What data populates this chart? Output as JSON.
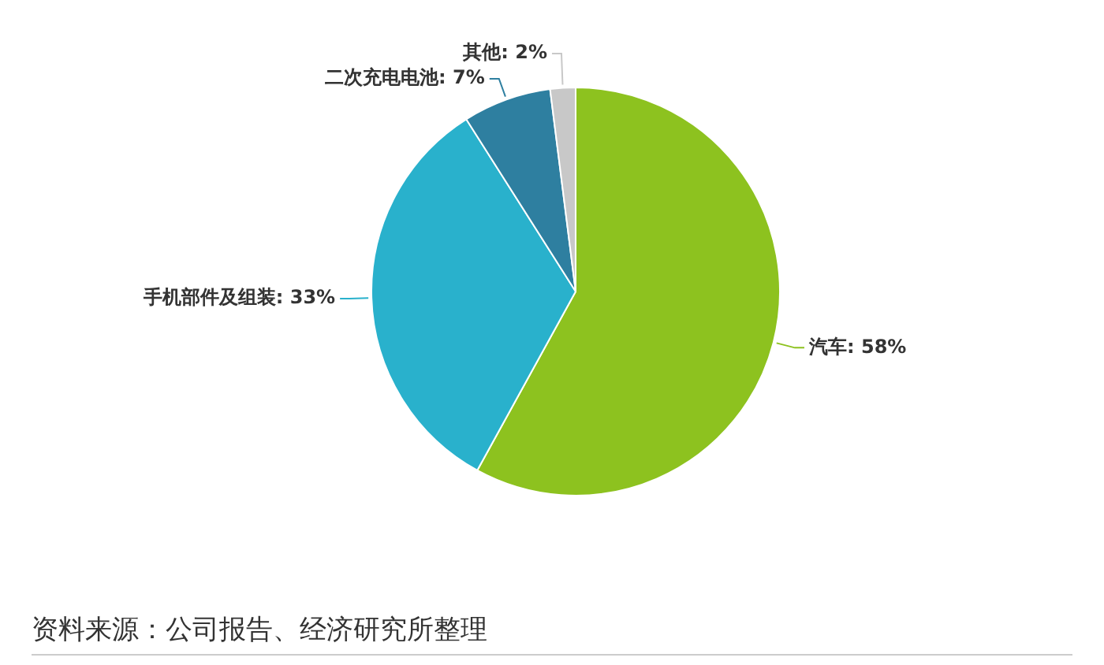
{
  "chart_data": {
    "type": "pie",
    "categories": [
      "汽车",
      "手机部件及组装",
      "二次充电电池",
      "其他"
    ],
    "values": [
      58,
      33,
      7,
      2
    ],
    "value_labels": [
      "58%",
      "33%",
      "7%",
      "2%"
    ],
    "colors": [
      "#8dc21f",
      "#29b1cc",
      "#2e7fa0",
      "#c8c8c8"
    ],
    "legend": false,
    "annotations": [
      "资料来源：公司报告、经济研究所整理"
    ]
  }
}
